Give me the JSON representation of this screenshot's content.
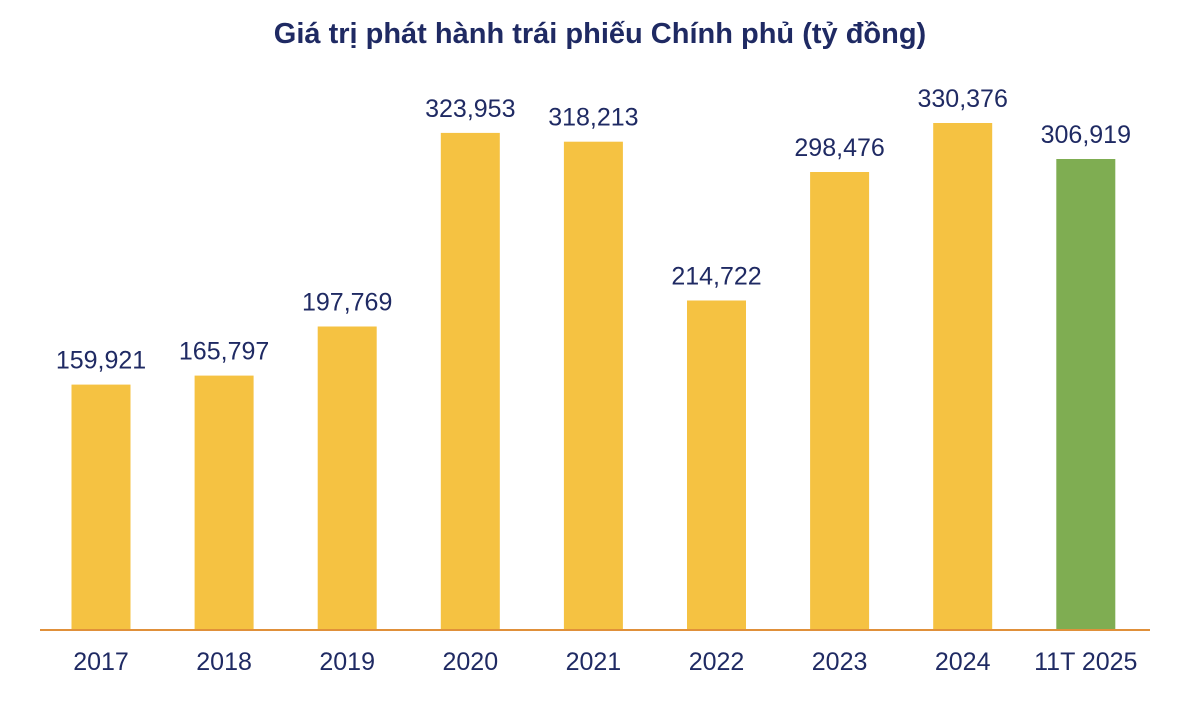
{
  "chart_data": {
    "type": "bar",
    "title": "Giá trị phát hành trái phiếu Chính phủ (tỷ đồng)",
    "categories": [
      "2017",
      "2018",
      "2019",
      "2020",
      "2021",
      "2022",
      "2023",
      "2024",
      "11T 2025"
    ],
    "values": [
      159921,
      165797,
      197769,
      323953,
      318213,
      214722,
      298476,
      330376,
      306919
    ],
    "data_labels": [
      "159,921",
      "165,797",
      "197,769",
      "323,953",
      "318,213",
      "214,722",
      "298,476",
      "330,376",
      "306,919"
    ],
    "bar_colors": [
      "#f5c242",
      "#f5c242",
      "#f5c242",
      "#f5c242",
      "#f5c242",
      "#f5c242",
      "#f5c242",
      "#f5c242",
      "#7fad52"
    ],
    "ylim": [
      0,
      400000
    ],
    "xlabel": "",
    "ylabel": "",
    "grid": false,
    "legend": "none",
    "colors": {
      "bar": "#f5c242",
      "highlight_bar": "#7fad52",
      "axis_line": "#e0903a",
      "text": "#1f2a63"
    }
  }
}
